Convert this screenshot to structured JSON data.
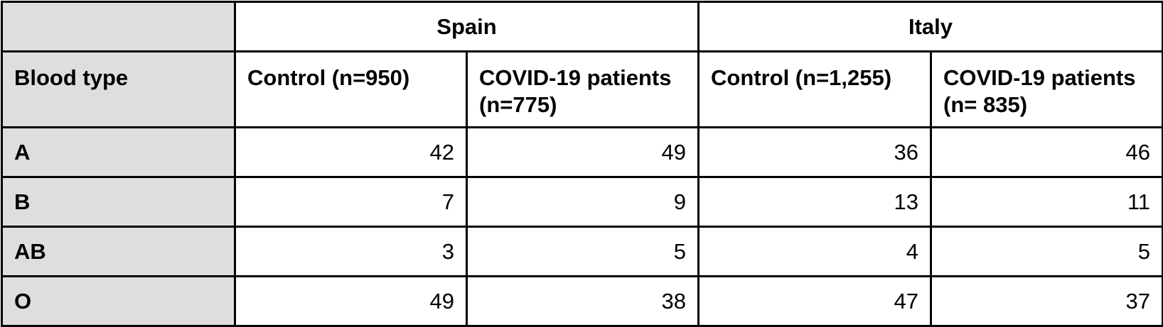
{
  "chart_data": {
    "type": "table",
    "corner_header": "Blood type",
    "groups": [
      "Spain",
      "Italy"
    ],
    "columns": [
      "Control (n=950)",
      "COVID-19 patients (n=775)",
      "Control (n=1,255)",
      "COVID-19 patients (n= 835)"
    ],
    "rows": [
      {
        "label": "A",
        "values": [
          42,
          49,
          36,
          46
        ]
      },
      {
        "label": "B",
        "values": [
          7,
          9,
          13,
          11
        ]
      },
      {
        "label": "AB",
        "values": [
          3,
          5,
          4,
          5
        ]
      },
      {
        "label": "O",
        "values": [
          49,
          38,
          47,
          37
        ]
      }
    ],
    "stub_background": "#dedede",
    "border_color": "#000000"
  }
}
